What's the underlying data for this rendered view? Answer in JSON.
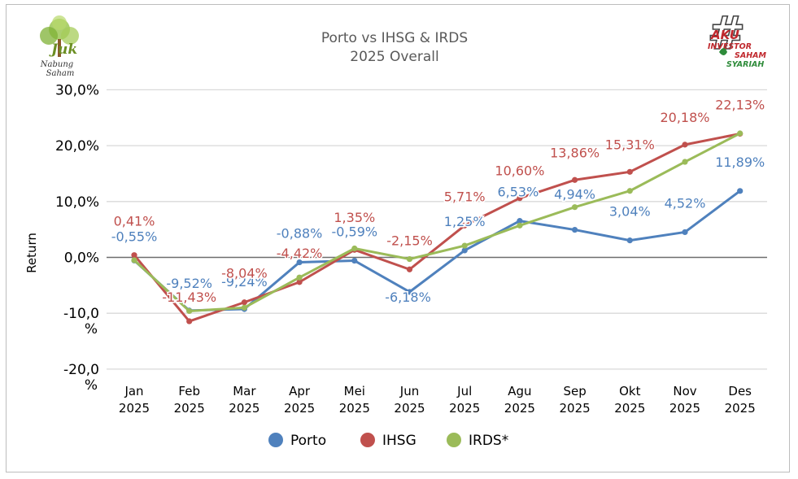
{
  "logo_left": {
    "mark": "Juk",
    "line1": "Nabung",
    "line2": "Saham"
  },
  "logo_right": {
    "line1": "AKU",
    "line2": "INVESTOR",
    "line3": "SAHAM",
    "line4": "SYARIAH",
    "mark": "#"
  },
  "chart_data": {
    "type": "line",
    "title": "Porto vs IHSG & IRDS",
    "subtitle": "2025 Overall",
    "ylabel": "Return",
    "xlabel": "",
    "ylim": [
      -20,
      30
    ],
    "yticks": [
      30,
      20,
      10,
      0,
      -10,
      -20
    ],
    "ytick_labels": [
      "30,0%",
      "20,0%",
      "10,0%",
      "0,0%",
      "-10,0 %",
      "-20,0 %"
    ],
    "categories": [
      {
        "month": "Jan",
        "year": "2025"
      },
      {
        "month": "Feb",
        "year": "2025"
      },
      {
        "month": "Mar",
        "year": "2025"
      },
      {
        "month": "Apr",
        "year": "2025"
      },
      {
        "month": "Mei",
        "year": "2025"
      },
      {
        "month": "Jun",
        "year": "2025"
      },
      {
        "month": "Jul",
        "year": "2025"
      },
      {
        "month": "Agu",
        "year": "2025"
      },
      {
        "month": "Sep",
        "year": "2025"
      },
      {
        "month": "Okt",
        "year": "2025"
      },
      {
        "month": "Nov",
        "year": "2025"
      },
      {
        "month": "Des",
        "year": "2025"
      }
    ],
    "series": [
      {
        "name": "Porto",
        "color": "#4f81bd",
        "values": [
          -0.55,
          -9.52,
          -9.24,
          -0.88,
          -0.59,
          -6.18,
          1.25,
          6.53,
          4.94,
          3.04,
          4.52,
          11.89
        ],
        "labels": [
          "-0,55%",
          "-9,52%",
          "-9,24%",
          "-0,88%",
          "-0,59%",
          "-6,18%",
          "1,25%",
          "6,53%",
          "4,94%",
          "3,04%",
          "4,52%",
          "11,89%"
        ]
      },
      {
        "name": "IHSG",
        "color": "#c0504d",
        "values": [
          0.41,
          -11.43,
          -8.04,
          -4.42,
          1.35,
          -2.15,
          5.71,
          10.6,
          13.86,
          15.31,
          20.18,
          22.13
        ],
        "labels": [
          "0,41%",
          "-11,43%",
          "-8,04%",
          "-4,42%",
          "1,35%",
          "-2,15%",
          "5,71%",
          "10,60%",
          "13,86%",
          "15,31%",
          "20,18%",
          "22,13%"
        ]
      },
      {
        "name": "IRDS*",
        "color": "#9bbb59",
        "values": [
          -0.5,
          -9.6,
          -9.0,
          -3.6,
          1.6,
          -0.3,
          2.1,
          5.7,
          9.0,
          11.9,
          17.1,
          22.2
        ],
        "labels": []
      }
    ],
    "legend": "bottom-center",
    "grid": true
  }
}
